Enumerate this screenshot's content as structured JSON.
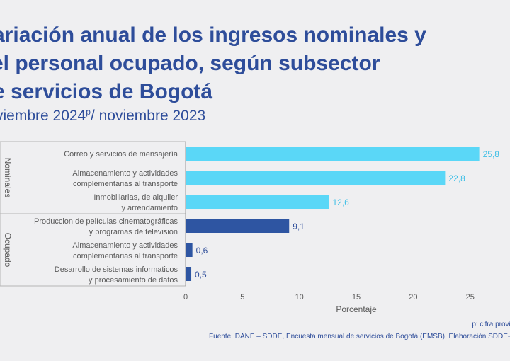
{
  "title_lines": [
    "ariación anual de los ingresos nominales y",
    "el personal ocupado, según subsector",
    "e servicios de Bogotá"
  ],
  "subtitle": {
    "before": "viembre 2024",
    "sup": "p",
    "after": "/ noviembre 2023"
  },
  "footer": {
    "note": "p: cifra provisi",
    "source": "Fuente: DANE – SDDE, Encuesta mensual de servicios de Bogotá (EMSB). Elaboración SDDE-O"
  },
  "colors": {
    "nominales": "#5ad7f7",
    "ocupado": "#2e55a2",
    "label_nominales": "#3fbfe6",
    "label_ocupado": "#2e4d9a",
    "text": "#5a5a5a",
    "axis": "#9a9a9a"
  },
  "chart_data": {
    "type": "bar",
    "orientation": "horizontal",
    "groups": [
      {
        "name": "Nominales",
        "categories": [
          [
            "Correo y servicios de mensajería"
          ],
          [
            "Almacenamiento y actividades",
            "complementarias al transporte"
          ],
          [
            "Inmobiliarias,  de alquiler",
            "y arrendamiento"
          ]
        ],
        "values": [
          25.8,
          22.8,
          12.6
        ],
        "value_labels": [
          "25,8",
          "22,8",
          "12,6"
        ]
      },
      {
        "name": "Ocupado",
        "categories": [
          [
            "Produccion de películas cinematográficas",
            "y programas de televisión"
          ],
          [
            "Almacenamiento y actividades",
            "complementarias al transporte"
          ],
          [
            "Desarrollo de sistemas informaticos",
            "y procesamiento de datos"
          ]
        ],
        "values": [
          9.1,
          0.6,
          0.5
        ],
        "value_labels": [
          "9,1",
          "0,6",
          "0,5"
        ]
      }
    ],
    "xlabel": "Porcentaje",
    "xticks": [
      0,
      5,
      10,
      15,
      20,
      25
    ],
    "xlim": [
      0,
      28.5
    ],
    "grid": false
  }
}
